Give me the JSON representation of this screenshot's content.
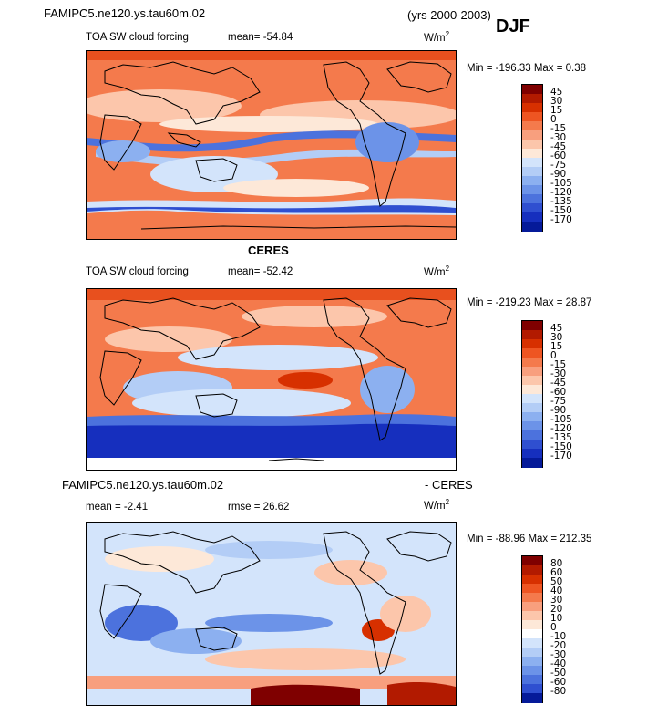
{
  "header": {
    "model": "FAMIPC5.ne120.ys.tau60m.02",
    "years": "(yrs 2000-2003)",
    "season": "DJF"
  },
  "panels": [
    {
      "variable": "TOA SW cloud forcing",
      "mean_label": "mean=",
      "mean_value": "-54.84",
      "units": "W/m",
      "units_exp": "2",
      "minmax": "Min = -196.33 Max =   0.38",
      "colorbar": {
        "levels": [
          "45",
          "30",
          "15",
          "0",
          "-15",
          "-30",
          "-45",
          "-60",
          "-75",
          "-90",
          "-105",
          "-120",
          "-135",
          "-150",
          "-170"
        ],
        "colors": [
          "#7f0000",
          "#b21a00",
          "#d73000",
          "#ee5522",
          "#f47a4c",
          "#f89f7e",
          "#fcc6ab",
          "#fde8d8",
          "#d3e4fb",
          "#b3cdf6",
          "#8cb0f0",
          "#6c93e8",
          "#4c72dd",
          "#2f4fd0",
          "#162fbe",
          "#051a99"
        ]
      }
    },
    {
      "title": "CERES",
      "variable": "TOA SW cloud forcing",
      "mean_label": "mean=",
      "mean_value": "-52.42",
      "units": "W/m",
      "units_exp": "2",
      "minmax": "Min = -219.23 Max =  28.87",
      "colorbar": {
        "levels": [
          "45",
          "30",
          "15",
          "0",
          "-15",
          "-30",
          "-45",
          "-60",
          "-75",
          "-90",
          "-105",
          "-120",
          "-135",
          "-150",
          "-170"
        ],
        "colors": [
          "#7f0000",
          "#b21a00",
          "#d73000",
          "#ee5522",
          "#f47a4c",
          "#f89f7e",
          "#fcc6ab",
          "#fde8d8",
          "#d3e4fb",
          "#b3cdf6",
          "#8cb0f0",
          "#6c93e8",
          "#4c72dd",
          "#2f4fd0",
          "#162fbe",
          "#051a99"
        ]
      }
    },
    {
      "title_left": "FAMIPC5.ne120.ys.tau60m.02",
      "title_right": "- CERES",
      "mean_label": "mean =",
      "mean_value": "-2.41",
      "rmse_label": "rmse =",
      "rmse_value": "26.62",
      "units": "W/m",
      "units_exp": "2",
      "minmax": "Min = -88.96 Max = 212.35",
      "colorbar": {
        "levels": [
          "80",
          "60",
          "50",
          "40",
          "30",
          "20",
          "10",
          "0",
          "-10",
          "-20",
          "-30",
          "-40",
          "-50",
          "-60",
          "-80"
        ],
        "colors": [
          "#7f0000",
          "#b21a00",
          "#d73000",
          "#ee5522",
          "#f47a4c",
          "#f89f7e",
          "#fcc6ab",
          "#fde8d8",
          "#ffffff",
          "#d3e4fb",
          "#b3cdf6",
          "#8cb0f0",
          "#6c93e8",
          "#4c72dd",
          "#2f4fd0",
          "#051a99"
        ]
      }
    }
  ]
}
